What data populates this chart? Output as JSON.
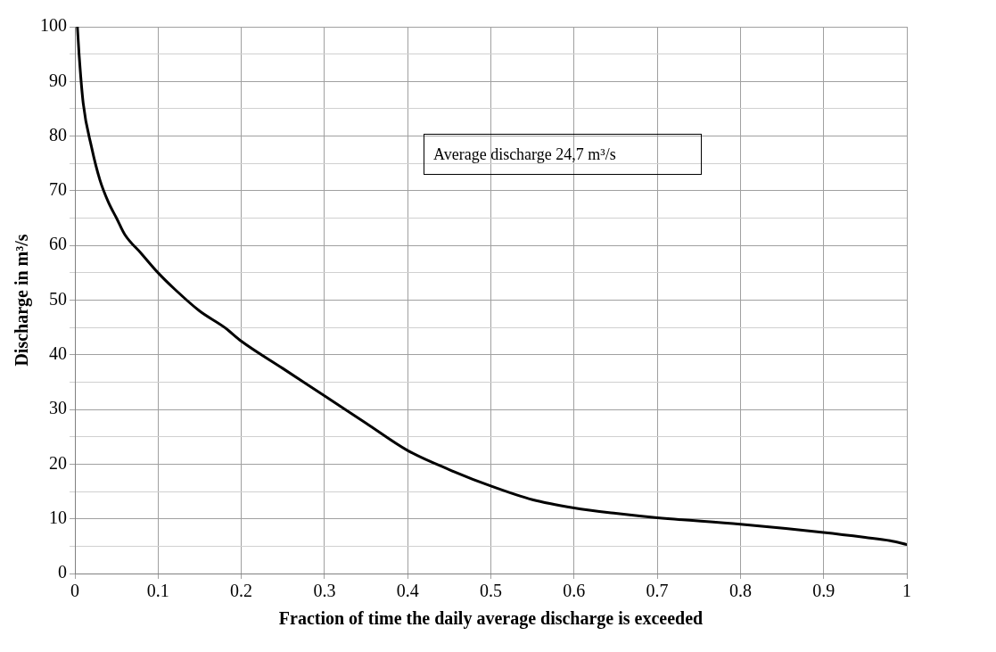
{
  "chart_data": {
    "type": "line",
    "xlabel": "Fraction of time the daily average discharge is exceeded",
    "ylabel": "Discharge in m³/s",
    "annotations": [
      "Average discharge 24,7 m³/s"
    ],
    "series": [
      {
        "color": "#000000",
        "x": [
          0.003,
          0.005,
          0.01,
          0.02,
          0.03,
          0.04,
          0.05,
          0.06,
          0.08,
          0.1,
          0.12,
          0.15,
          0.18,
          0.2,
          0.25,
          0.3,
          0.35,
          0.4,
          0.45,
          0.5,
          0.55,
          0.6,
          0.65,
          0.7,
          0.8,
          0.9,
          0.95,
          0.98,
          1.0
        ],
        "values": [
          100,
          95,
          86,
          78,
          72,
          68,
          65,
          62,
          58.5,
          55,
          52,
          48,
          45,
          42.5,
          37.5,
          32.5,
          27.5,
          22.5,
          19,
          16,
          13.5,
          12,
          11,
          10.2,
          9,
          7.5,
          6.6,
          6,
          5.3
        ]
      }
    ],
    "xlim": [
      0,
      1
    ],
    "xticks": [
      0,
      0.1,
      0.2,
      0.3,
      0.4,
      0.5,
      0.6,
      0.7,
      0.8,
      0.9,
      1
    ],
    "ylim": [
      0,
      100
    ],
    "yticks": [
      0,
      {
        "value": 5,
        "label": null
      },
      10,
      {
        "value": 15,
        "label": null
      },
      20,
      {
        "value": 25,
        "label": null
      },
      30,
      {
        "value": 35,
        "label": null
      },
      40,
      {
        "value": 45,
        "label": null
      },
      50,
      {
        "value": 55,
        "label": null
      },
      60,
      {
        "value": 65,
        "label": null
      },
      70,
      {
        "value": 75,
        "label": null
      },
      80,
      {
        "value": 85,
        "label": null
      },
      90,
      {
        "value": 95,
        "label": null
      },
      100
    ],
    "grid": true,
    "legend": false,
    "marker": "none",
    "line_style": "solid"
  }
}
